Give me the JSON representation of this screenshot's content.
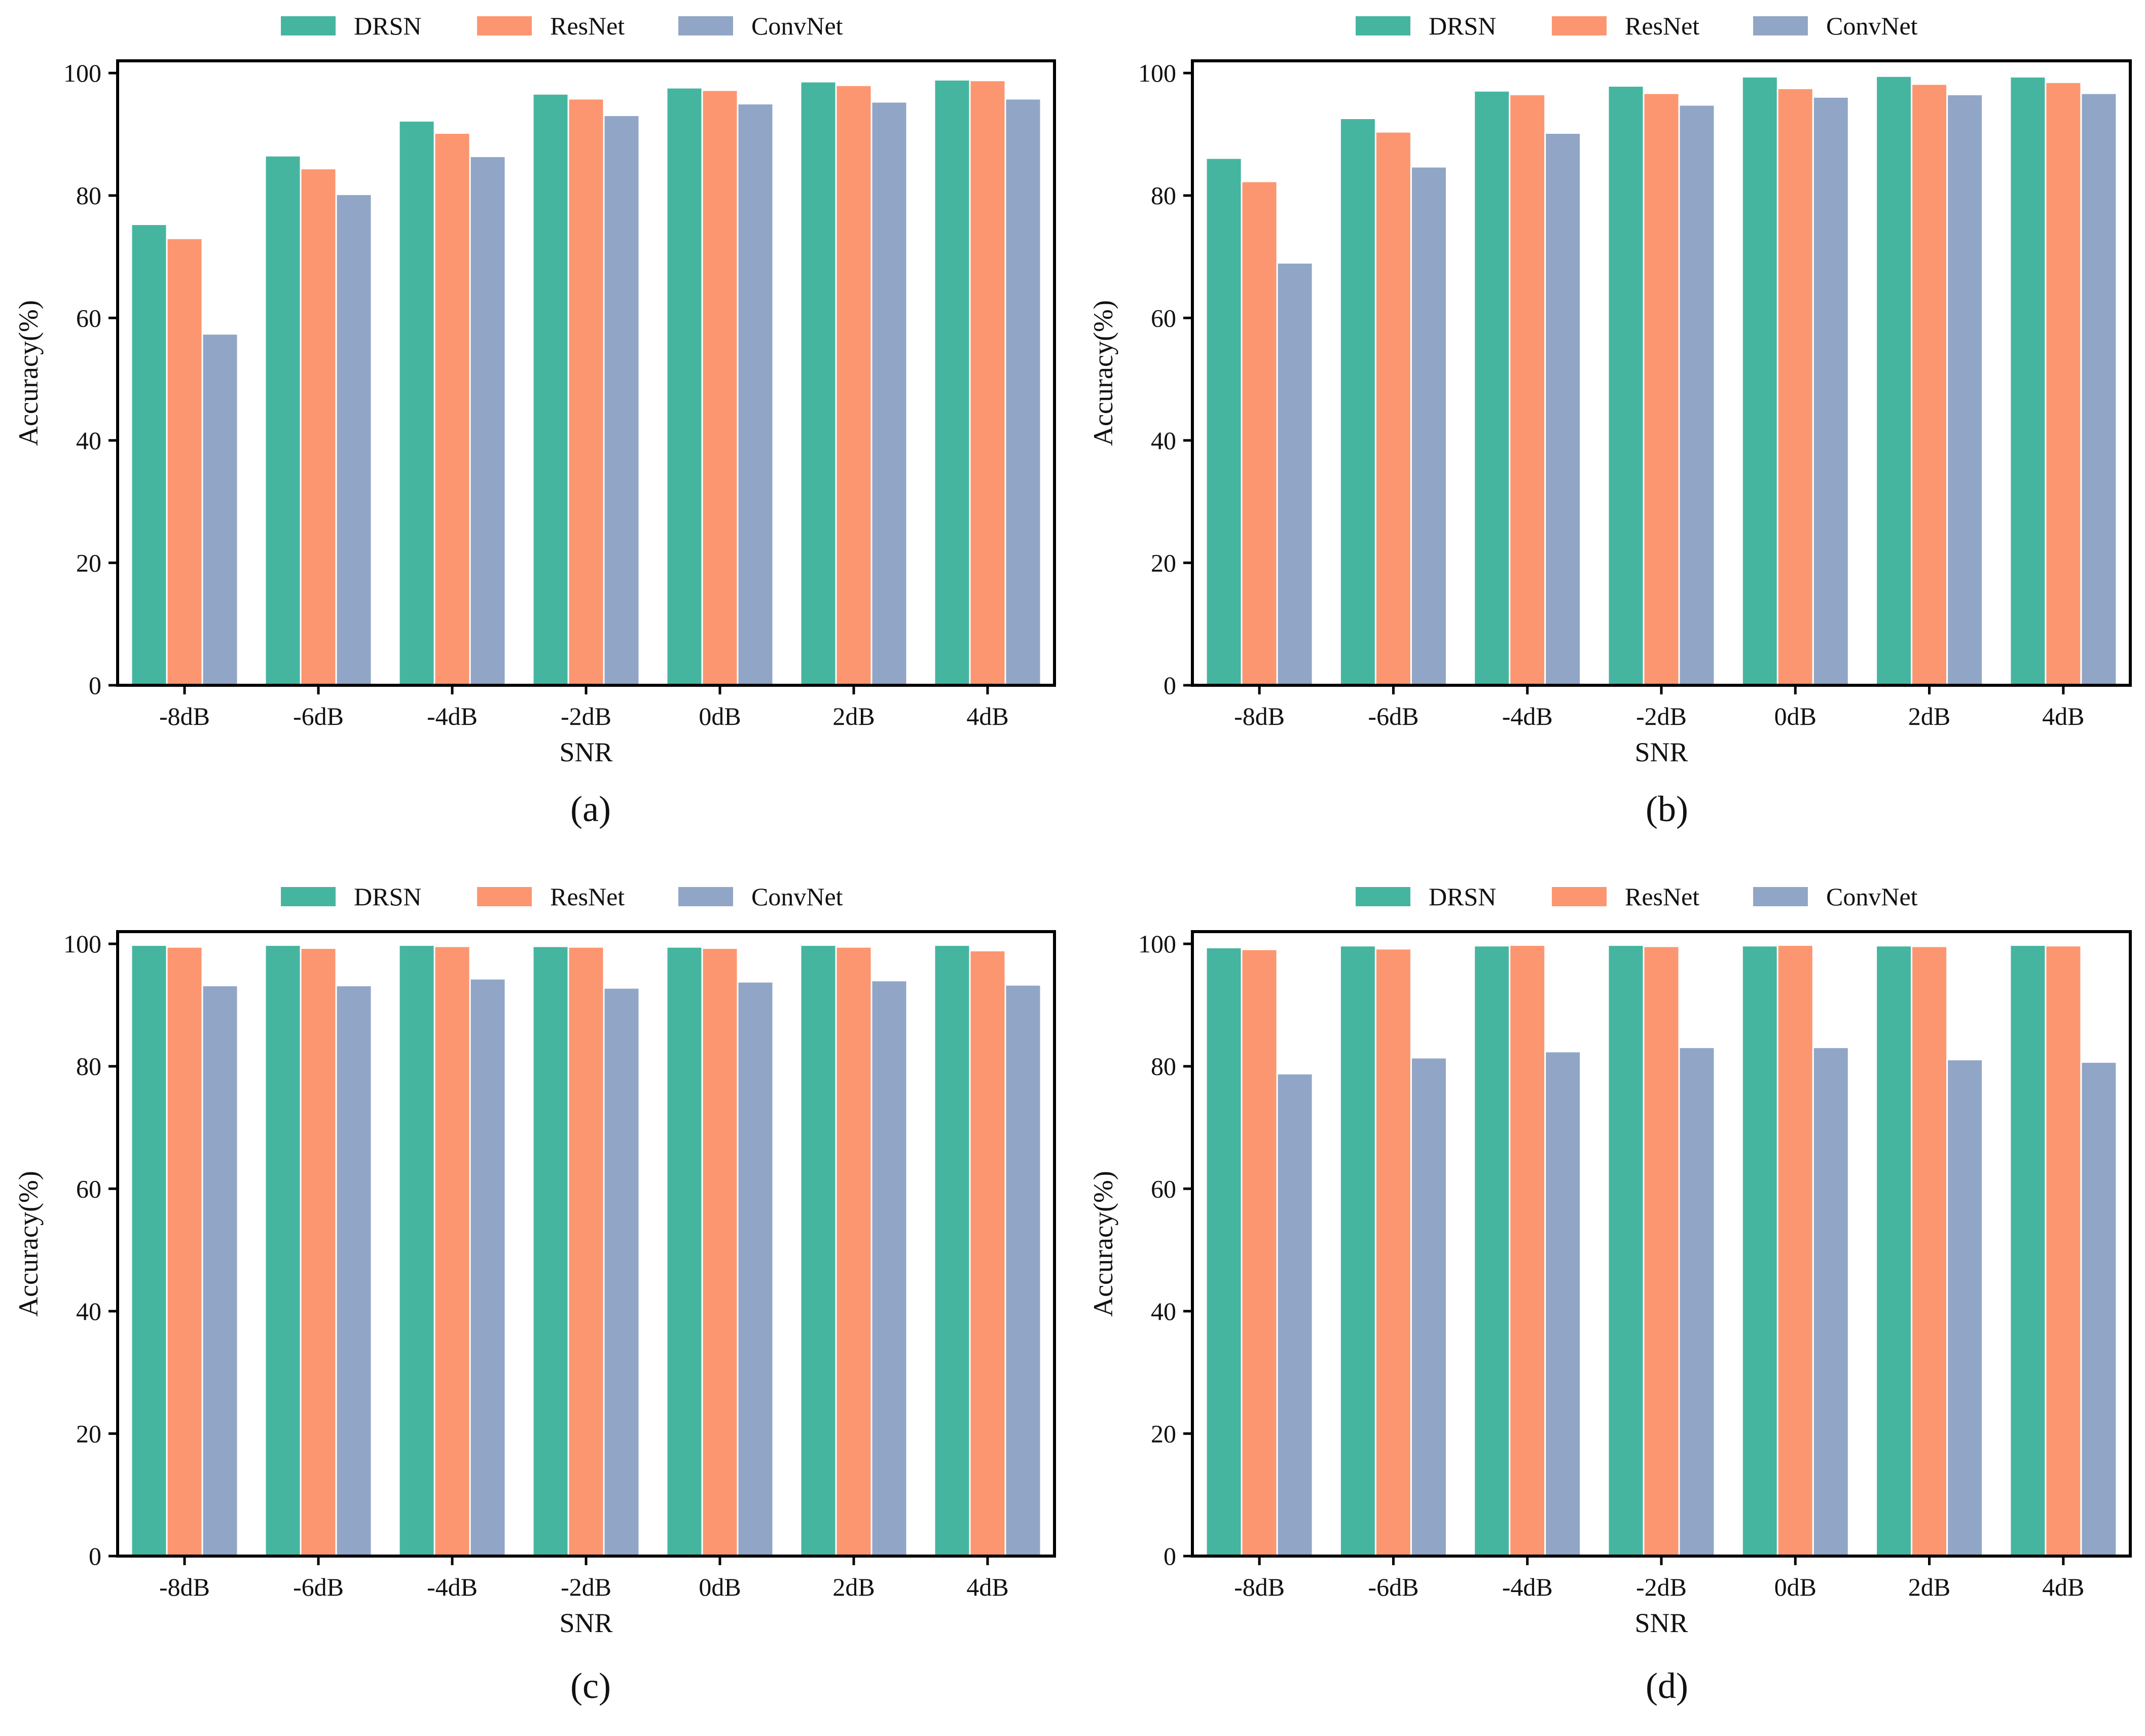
{
  "legend_colors": {
    "DRSN": "#45b5a0",
    "ResNet": "#fc9670",
    "ConvNet": "#91a6c6"
  },
  "chart_data": [
    {
      "type": "bar",
      "panel": "(a)",
      "categories": [
        "-8dB",
        "-6dB",
        "-4dB",
        "-2dB",
        "0dB",
        "2dB",
        "4dB"
      ],
      "series": [
        {
          "name": "DRSN",
          "values": [
            75.3,
            86.5,
            92.2,
            96.6,
            97.6,
            98.6,
            98.9
          ]
        },
        {
          "name": "ResNet",
          "values": [
            73.0,
            84.4,
            90.2,
            95.8,
            97.2,
            98.0,
            98.8
          ]
        },
        {
          "name": "ConvNet",
          "values": [
            57.4,
            80.2,
            86.4,
            93.1,
            95.0,
            95.3,
            95.8
          ]
        }
      ],
      "xlabel": "SNR",
      "ylabel": "Accuracy(%)",
      "ylim": [
        0,
        102
      ],
      "yticks": [
        0,
        20,
        40,
        60,
        80,
        100
      ],
      "legend": "top-center",
      "grid": false
    },
    {
      "type": "bar",
      "panel": "(b)",
      "categories": [
        "-8dB",
        "-6dB",
        "-4dB",
        "-2dB",
        "0dB",
        "2dB",
        "4dB"
      ],
      "series": [
        {
          "name": "DRSN",
          "values": [
            86.1,
            92.6,
            97.1,
            97.9,
            99.4,
            99.5,
            99.4
          ]
        },
        {
          "name": "ResNet",
          "values": [
            82.3,
            90.4,
            96.5,
            96.7,
            97.5,
            98.2,
            98.5
          ]
        },
        {
          "name": "ConvNet",
          "values": [
            69.0,
            84.7,
            90.2,
            94.8,
            96.1,
            96.5,
            96.7
          ]
        }
      ],
      "xlabel": "SNR",
      "ylabel": "Accuracy(%)",
      "ylim": [
        0,
        102
      ],
      "yticks": [
        0,
        20,
        40,
        60,
        80,
        100
      ],
      "legend": "top-center",
      "grid": false
    },
    {
      "type": "bar",
      "panel": "(c)",
      "categories": [
        "-8dB",
        "-6dB",
        "-4dB",
        "-2dB",
        "0dB",
        "2dB",
        "4dB"
      ],
      "series": [
        {
          "name": "DRSN",
          "values": [
            99.8,
            99.8,
            99.8,
            99.6,
            99.5,
            99.8,
            99.8
          ]
        },
        {
          "name": "ResNet",
          "values": [
            99.5,
            99.3,
            99.6,
            99.5,
            99.3,
            99.5,
            98.9
          ]
        },
        {
          "name": "ConvNet",
          "values": [
            93.2,
            93.2,
            94.3,
            92.8,
            93.8,
            94.0,
            93.3
          ]
        }
      ],
      "xlabel": "SNR",
      "ylabel": "Accuracy(%)",
      "ylim": [
        0,
        102
      ],
      "yticks": [
        0,
        20,
        40,
        60,
        80,
        100
      ],
      "legend": "top-center",
      "grid": false
    },
    {
      "type": "bar",
      "panel": "(d)",
      "categories": [
        "-8dB",
        "-6dB",
        "-4dB",
        "-2dB",
        "0dB",
        "2dB",
        "4dB"
      ],
      "series": [
        {
          "name": "DRSN",
          "values": [
            99.4,
            99.7,
            99.7,
            99.8,
            99.7,
            99.7,
            99.8
          ]
        },
        {
          "name": "ResNet",
          "values": [
            99.1,
            99.2,
            99.8,
            99.6,
            99.8,
            99.6,
            99.7
          ]
        },
        {
          "name": "ConvNet",
          "values": [
            78.8,
            81.4,
            82.4,
            83.1,
            83.1,
            81.1,
            80.7
          ]
        }
      ],
      "xlabel": "SNR",
      "ylabel": "Accuracy(%)",
      "ylim": [
        0,
        102
      ],
      "yticks": [
        0,
        20,
        40,
        60,
        80,
        100
      ],
      "legend": "top-center",
      "grid": false
    }
  ]
}
